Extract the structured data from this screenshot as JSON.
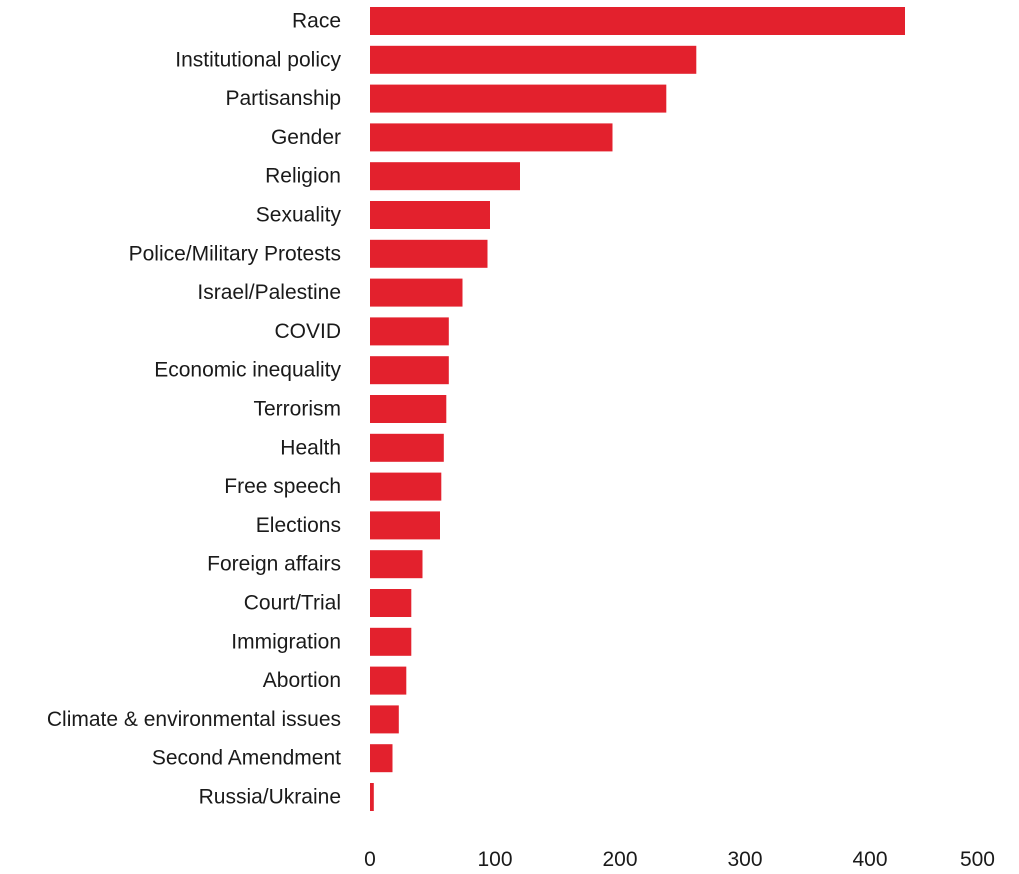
{
  "chart_data": {
    "type": "bar",
    "orientation": "horizontal",
    "categories": [
      "Race",
      "Institutional policy",
      "Partisanship",
      "Gender",
      "Religion",
      "Sexuality",
      "Police/Military Protests",
      "Israel/Palestine",
      "COVID",
      "Economic inequality",
      "Terrorism",
      "Health",
      "Free speech",
      "Elections",
      "Foreign affairs",
      "Court/Trial",
      "Immigration",
      "Abortion",
      "Climate & environmental issues",
      "Second Amendment",
      "Russia/Ukraine"
    ],
    "values": [
      428,
      261,
      237,
      194,
      120,
      96,
      94,
      74,
      63,
      63,
      61,
      59,
      57,
      56,
      42,
      33,
      33,
      29,
      23,
      18,
      3
    ],
    "xlim": [
      0,
      500
    ],
    "xticks": [
      "0",
      "100",
      "200",
      "300",
      "400",
      "500"
    ],
    "title": "",
    "xlabel": "",
    "ylabel": "",
    "grid": false,
    "legend": "none",
    "bar_color": "#e3212d"
  }
}
